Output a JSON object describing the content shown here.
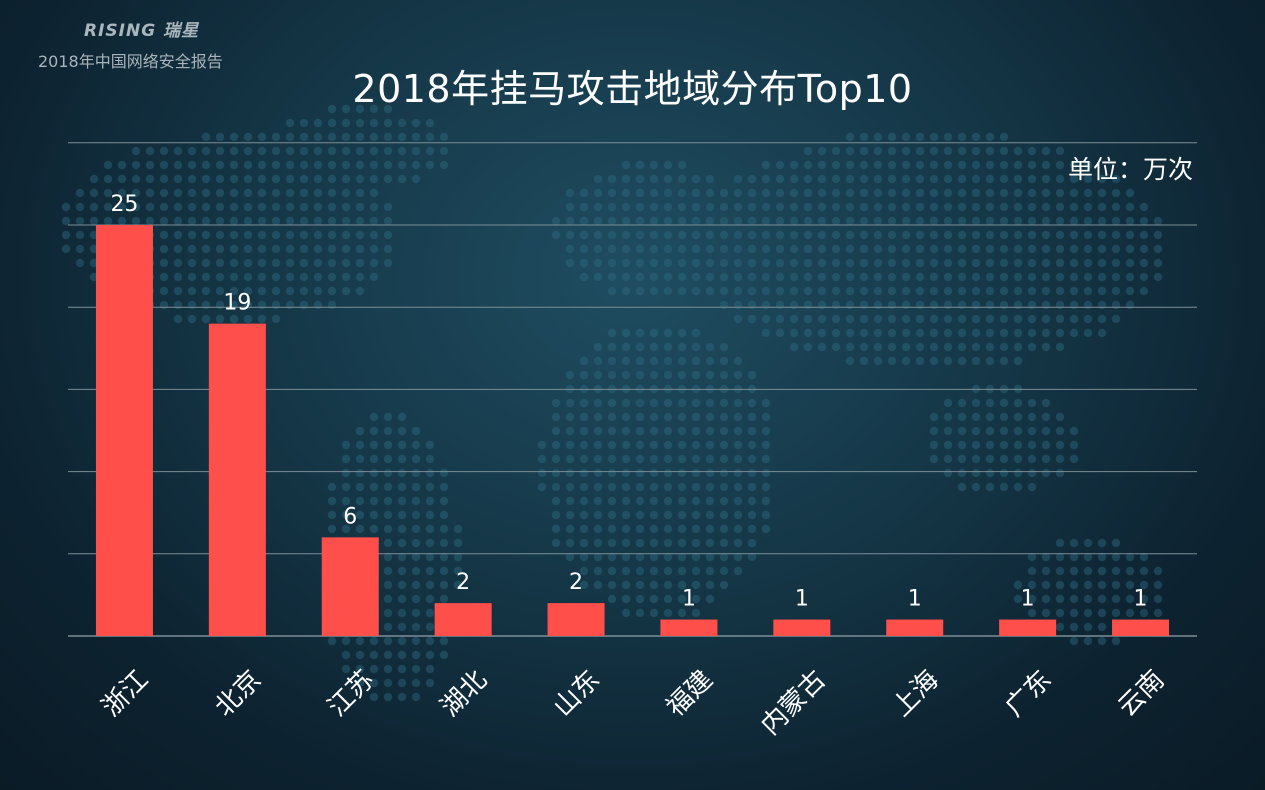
{
  "header": {
    "brand_logo_text": "RISING 瑞星",
    "report_name": "2018年中国网络安全报告"
  },
  "colors": {
    "bar": "#ff4f4b",
    "grid": "#7c8e96",
    "text": "#ffffff"
  },
  "chart_data": {
    "type": "bar",
    "title": "2018年挂马攻击地域分布Top10",
    "unit": "单位：万次",
    "categories": [
      "浙江",
      "北京",
      "江苏",
      "湖北",
      "山东",
      "福建",
      "内蒙古",
      "上海",
      "广东",
      "云南"
    ],
    "values": [
      25,
      19,
      6,
      2,
      2,
      1,
      1,
      1,
      1,
      1
    ],
    "ylim": [
      0,
      30
    ],
    "grid": true,
    "xlabel": "",
    "ylabel": ""
  }
}
